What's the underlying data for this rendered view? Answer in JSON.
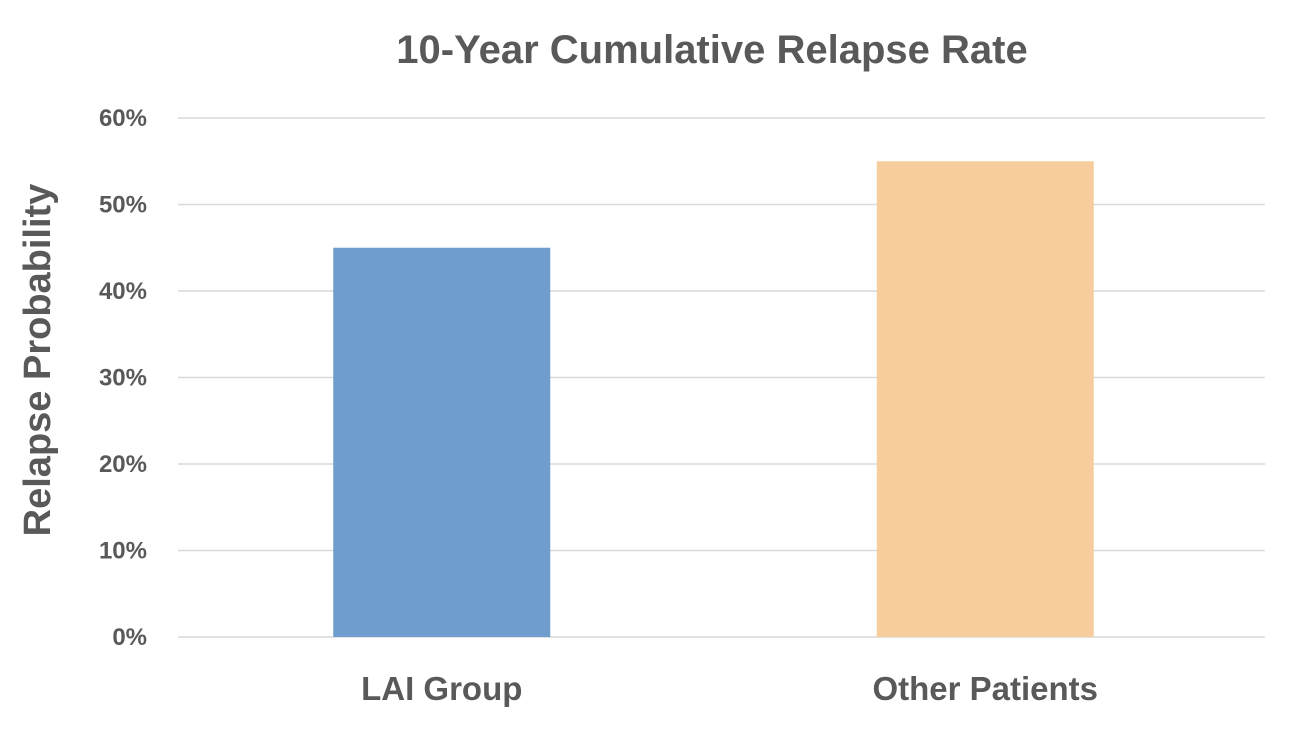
{
  "chart_data": {
    "type": "bar",
    "title": "10-Year Cumulative Relapse Rate",
    "xlabel": "",
    "ylabel": "Relapse Probability",
    "categories": [
      "LAI Group",
      "Other Patients"
    ],
    "values": [
      0.45,
      0.55
    ],
    "colors": [
      "#6f9dcd",
      "#f7cd9e"
    ],
    "ylim": [
      0,
      0.6
    ],
    "yticks": [
      0,
      0.1,
      0.2,
      0.3,
      0.4,
      0.5,
      0.6
    ],
    "ytick_labels": [
      "0%",
      "10%",
      "20%",
      "30%",
      "40%",
      "50%",
      "60%"
    ],
    "grid": true,
    "legend": "none"
  },
  "colors": {
    "text": "#595959",
    "grid": "#d9d9d9",
    "background": "#ffffff"
  }
}
